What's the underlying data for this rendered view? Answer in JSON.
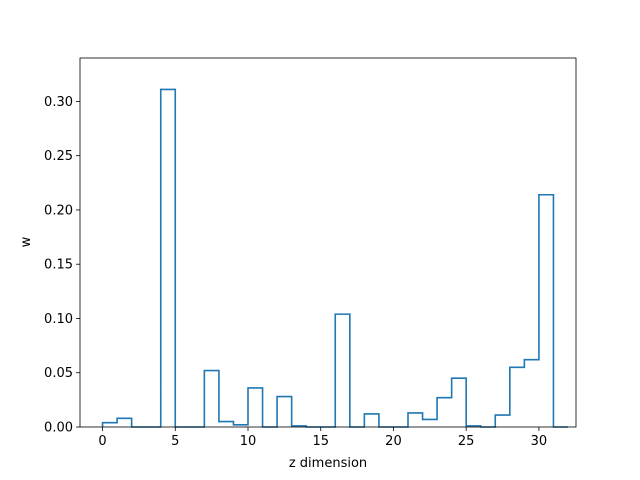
{
  "chart_data": {
    "type": "bar",
    "style": "step-histogram",
    "bin_width": 1,
    "x_start": 0,
    "values": [
      0.004,
      0.008,
      0.0,
      0.0,
      0.311,
      0.0,
      0.0,
      0.052,
      0.005,
      0.002,
      0.036,
      0.0,
      0.028,
      0.001,
      0.0,
      0.0,
      0.104,
      0.0,
      0.012,
      0.0,
      0.0,
      0.013,
      0.007,
      0.027,
      0.045,
      0.001,
      0.0,
      0.011,
      0.055,
      0.062,
      0.214,
      0.0
    ],
    "xlabel": "z dimension",
    "ylabel": "w",
    "xlim": [
      -1.55,
      32.55
    ],
    "ylim": [
      0,
      0.34
    ],
    "x_ticks": [
      0,
      5,
      10,
      15,
      20,
      25,
      30
    ],
    "x_tick_labels": [
      "0",
      "5",
      "10",
      "15",
      "20",
      "25",
      "30"
    ],
    "y_ticks": [
      0.0,
      0.05,
      0.1,
      0.15,
      0.2,
      0.25,
      0.3
    ],
    "y_tick_labels": [
      "0.00",
      "0.05",
      "0.10",
      "0.15",
      "0.20",
      "0.25",
      "0.30"
    ],
    "grid": false,
    "line_color": "#1f77b4"
  }
}
